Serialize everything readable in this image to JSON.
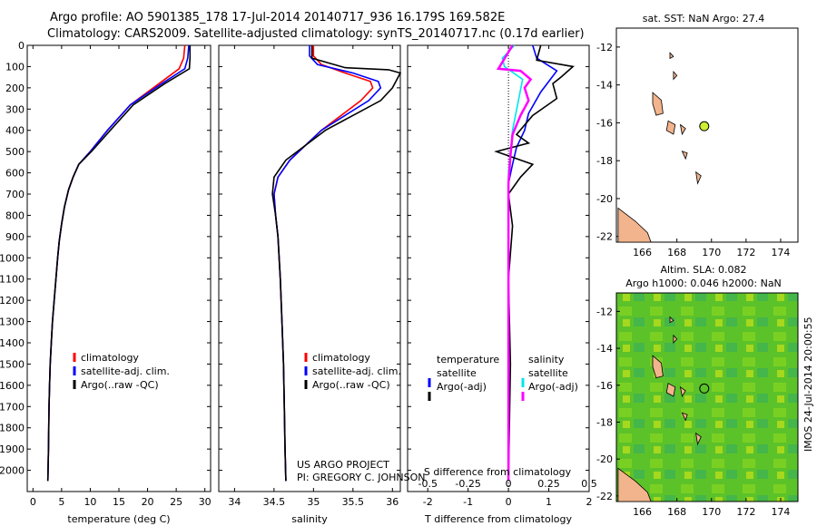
{
  "header": {
    "title_line1": "Argo profile: AO 5901385_178 17-Jul-2014 20140717_936 16.179S 169.582E",
    "title_line2": "Climatology: CARS2009. Satellite-adjusted climatology: synTS_20140717.nc (0.17d earlier)"
  },
  "colors": {
    "climatology": "#ff0000",
    "satellite": "#0000ff",
    "argo": "#000000",
    "salinity_satellite": "#00e5ee",
    "salinity_argo": "#ff00ff",
    "land": "#f2b48c",
    "float_marker": "#ccee33"
  },
  "chart_data": [
    {
      "type": "line",
      "title": "",
      "xlabel": "temperature (deg C)",
      "ylabel": "",
      "xlim": [
        -1,
        31
      ],
      "ylim": [
        2100,
        0
      ],
      "xticks": [
        "0",
        "5",
        "10",
        "15",
        "20",
        "25",
        "30"
      ],
      "xtick_values": [
        0,
        5,
        10,
        15,
        20,
        25,
        30
      ],
      "yticks": [
        "0",
        "100",
        "200",
        "300",
        "400",
        "500",
        "600",
        "700",
        "800",
        "900",
        "1000",
        "1100",
        "1200",
        "1300",
        "1400",
        "1500",
        "1600",
        "1700",
        "1800",
        "1900",
        "2000"
      ],
      "ytick_values": [
        0,
        100,
        200,
        300,
        400,
        500,
        600,
        700,
        800,
        900,
        1000,
        1100,
        1200,
        1300,
        1400,
        1500,
        1600,
        1700,
        1800,
        1900,
        2000
      ],
      "legend": {
        "location": "bottom-center",
        "items": [
          "climatology",
          "satellite-adj. clim.",
          "Argo(..raw -QC)"
        ]
      },
      "series": [
        {
          "name": "climatology",
          "color": "#ff0000",
          "x": [
            26.5,
            26.3,
            25.5,
            22,
            17,
            13,
            10,
            8,
            7,
            6.2,
            5.5,
            5,
            4.6,
            4.3,
            4,
            3.7,
            3.4,
            3.2,
            3,
            2.9,
            2.8,
            2.7,
            2.6
          ],
          "y": [
            0,
            60,
            110,
            180,
            280,
            400,
            500,
            560,
            620,
            680,
            760,
            840,
            920,
            1000,
            1100,
            1200,
            1300,
            1400,
            1500,
            1600,
            1700,
            1900,
            2050
          ]
        },
        {
          "name": "satellite-adj. clim.",
          "color": "#0000ff",
          "x": [
            27.2,
            27,
            26.5,
            22.5,
            17,
            13,
            10,
            8,
            7,
            6.2,
            5.5,
            5,
            4.6,
            4.3,
            4,
            3.7,
            3.4,
            3.2,
            3,
            2.9,
            2.8,
            2.7,
            2.6
          ],
          "y": [
            0,
            60,
            110,
            180,
            280,
            400,
            500,
            560,
            620,
            680,
            760,
            840,
            920,
            1000,
            1100,
            1200,
            1300,
            1400,
            1500,
            1600,
            1700,
            1900,
            2050
          ]
        },
        {
          "name": "Argo(..raw -QC)",
          "color": "#000000",
          "x": [
            27.4,
            27.4,
            27.3,
            23,
            17.5,
            13.5,
            10.2,
            8,
            7,
            6.2,
            5.5,
            5,
            4.6,
            4.3,
            4,
            3.7,
            3.4,
            3.2,
            3,
            2.9,
            2.8,
            2.7,
            2.6
          ],
          "y": [
            0,
            60,
            110,
            180,
            280,
            400,
            500,
            560,
            620,
            680,
            760,
            840,
            920,
            1000,
            1100,
            1200,
            1300,
            1400,
            1500,
            1600,
            1700,
            1900,
            2050
          ]
        }
      ]
    },
    {
      "type": "line",
      "title": "",
      "xlabel": "salinity",
      "xlim": [
        33.8,
        36.1
      ],
      "ylim": [
        2100,
        0
      ],
      "xticks": [
        "34",
        "34.5",
        "35",
        "35.5",
        "36"
      ],
      "xtick_values": [
        34,
        34.5,
        35,
        35.5,
        36
      ],
      "legend": {
        "location": "bottom-center",
        "items": [
          "climatology",
          "satellite-adj. clim.",
          "Argo(..raw -QC)"
        ]
      },
      "annotations": [
        "US ARGO PROJECT",
        "PI: GREGORY C. JOHNSON"
      ],
      "series": [
        {
          "name": "climatology",
          "color": "#ff0000",
          "x": [
            35,
            35,
            35.1,
            35.4,
            35.72,
            35.75,
            35.6,
            35.35,
            35.1,
            34.9,
            34.7,
            34.55,
            34.5,
            34.52,
            34.55,
            34.58,
            34.6,
            34.62,
            34.63,
            34.64,
            34.65
          ],
          "y": [
            0,
            50,
            90,
            130,
            170,
            200,
            260,
            330,
            400,
            470,
            540,
            620,
            700,
            800,
            900,
            1100,
            1300,
            1500,
            1700,
            1900,
            2050
          ]
        },
        {
          "name": "satellite-adj. clim.",
          "color": "#0000ff",
          "x": [
            34.95,
            34.95,
            35.05,
            35.5,
            35.82,
            35.85,
            35.7,
            35.4,
            35.1,
            34.9,
            34.7,
            34.55,
            34.5,
            34.52,
            34.55,
            34.58,
            34.6,
            34.62,
            34.63,
            34.64,
            34.65
          ],
          "y": [
            0,
            50,
            90,
            130,
            170,
            200,
            260,
            330,
            400,
            470,
            540,
            620,
            700,
            800,
            900,
            1100,
            1300,
            1500,
            1700,
            1900,
            2050
          ]
        },
        {
          "name": "Argo(..raw -QC)",
          "color": "#000000",
          "x": [
            34.98,
            34.98,
            35.4,
            35.95,
            36.1,
            36,
            35.85,
            35.5,
            35.15,
            34.9,
            34.65,
            34.5,
            34.48,
            34.52,
            34.55,
            34.58,
            34.6,
            34.62,
            34.63,
            34.64,
            34.65
          ],
          "y": [
            0,
            60,
            105,
            115,
            130,
            200,
            260,
            330,
            400,
            470,
            540,
            620,
            700,
            800,
            900,
            1100,
            1300,
            1500,
            1700,
            1900,
            2050
          ]
        }
      ]
    },
    {
      "type": "line",
      "title": "",
      "xlabel": "T difference from climatology",
      "xlabel_top": "S difference from climatology",
      "xlim": [
        -2.5,
        2.0
      ],
      "ylim": [
        2100,
        0
      ],
      "xticks": [
        "-2",
        "-1",
        "0",
        "1",
        "2"
      ],
      "xtick_values": [
        -2,
        -1,
        0,
        1,
        2
      ],
      "s_xticks": [
        "-0.5",
        "-0.25",
        "0",
        "0.25",
        "0.5"
      ],
      "s_xtick_values": [
        -0.5,
        -0.25,
        0,
        0.25,
        0.5
      ],
      "legend": {
        "location": "bottom",
        "items": [
          "temperature",
          "satellite",
          "Argo(-adj)",
          "salinity",
          "satellite",
          "Argo(-adj)"
        ]
      },
      "series": [
        {
          "name": "temperature satellite",
          "color": "#0000ff",
          "x": [
            0.6,
            0.7,
            1.2,
            0.8,
            0.5,
            0.4,
            0.2,
            0.1,
            0,
            0,
            0,
            0,
            0,
            0
          ],
          "y": [
            0,
            60,
            120,
            220,
            320,
            400,
            480,
            560,
            650,
            800,
            1000,
            1400,
            1800,
            2050
          ]
        },
        {
          "name": "temperature Argo(-adj)",
          "color": "#000000",
          "x": [
            0.8,
            0.7,
            1.6,
            1.3,
            1.1,
            1.2,
            0.6,
            0.2,
            0.5,
            -0.3,
            0.6,
            0.3,
            0,
            0.1,
            0,
            0.05,
            0
          ],
          "y": [
            0,
            70,
            100,
            150,
            180,
            250,
            330,
            420,
            460,
            500,
            560,
            620,
            700,
            850,
            1100,
            1500,
            2050
          ]
        },
        {
          "name": "salinity satellite",
          "color": "#00e5ee",
          "x": [
            0.15,
            -0.15,
            -0.1,
            0.35,
            0.1,
            0,
            0,
            0,
            0
          ],
          "y": [
            0,
            60,
            100,
            160,
            400,
            600,
            800,
            1300,
            2050
          ]
        },
        {
          "name": "salinity Argo(-adj)",
          "color": "#ff00ff",
          "x": [
            0.1,
            -0.25,
            0.3,
            0.55,
            0.4,
            0.5,
            0.3,
            0.1,
            0.05,
            0,
            0,
            0
          ],
          "y": [
            0,
            110,
            120,
            160,
            200,
            260,
            330,
            420,
            520,
            650,
            900,
            2050
          ]
        }
      ]
    },
    {
      "type": "map",
      "title": "sat. SST: NaN Argo: 27.4",
      "xlim": [
        164.5,
        175
      ],
      "ylim": [
        -22.3,
        -11
      ],
      "xticks": [
        "166",
        "168",
        "170",
        "172",
        "174"
      ],
      "xtick_values": [
        166,
        168,
        170,
        172,
        174
      ],
      "yticks": [
        "-12",
        "-14",
        "-16",
        "-18",
        "-20",
        "-22"
      ],
      "ytick_values": [
        -12,
        -14,
        -16,
        -18,
        -20,
        -22
      ],
      "float_position": {
        "lon": 169.582,
        "lat": -16.179
      }
    },
    {
      "type": "heatmap",
      "title": "Altim. SLA: 0.082",
      "subtitle": "Argo h1000: 0.046 h2000: NaN",
      "xlim": [
        164.5,
        175
      ],
      "ylim": [
        -22.3,
        -11
      ],
      "xticks": [
        "166",
        "168",
        "170",
        "172",
        "174"
      ],
      "xtick_values": [
        166,
        168,
        170,
        172,
        174
      ],
      "yticks": [
        "-12",
        "-14",
        "-16",
        "-18",
        "-20",
        "-22"
      ],
      "ytick_values": [
        -12,
        -14,
        -16,
        -18,
        -20,
        -22
      ],
      "float_position": {
        "lon": 169.582,
        "lat": -16.179
      }
    }
  ],
  "footer": {
    "stamp": "IMOS 24-Jul-2014 20:00:55"
  }
}
